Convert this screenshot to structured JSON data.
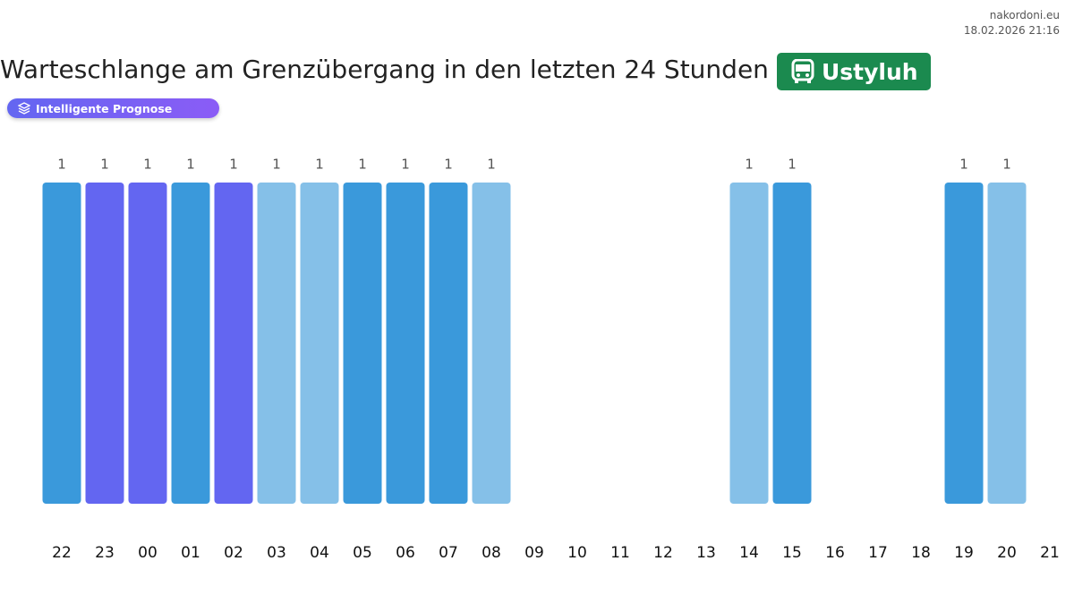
{
  "header": {
    "site": "nakordoni.eu",
    "timestamp": "18.02.2026 21:16",
    "title": "Warteschlange am Grenzübergang in den letzten 24 Stunden",
    "crossing": "Ustyluh",
    "badge": "Intelligente Prognose"
  },
  "chart_data": {
    "type": "bar",
    "categories": [
      "22",
      "23",
      "00",
      "01",
      "02",
      "03",
      "04",
      "05",
      "06",
      "07",
      "08",
      "09",
      "10",
      "11",
      "12",
      "13",
      "14",
      "15",
      "16",
      "17",
      "18",
      "19",
      "20",
      "21"
    ],
    "values": [
      1,
      1,
      1,
      1,
      1,
      1,
      1,
      1,
      1,
      1,
      1,
      null,
      null,
      null,
      null,
      null,
      1,
      1,
      null,
      null,
      null,
      1,
      1,
      null
    ],
    "colors": [
      "#3a99db",
      "#6366f1",
      "#6366f1",
      "#3a99db",
      "#6366f1",
      "#85c0e8",
      "#85c0e8",
      "#3a99db",
      "#3a99db",
      "#3a99db",
      "#85c0e8",
      null,
      null,
      null,
      null,
      null,
      "#85c0e8",
      "#3a99db",
      null,
      null,
      null,
      "#3a99db",
      "#85c0e8",
      null
    ]
  }
}
